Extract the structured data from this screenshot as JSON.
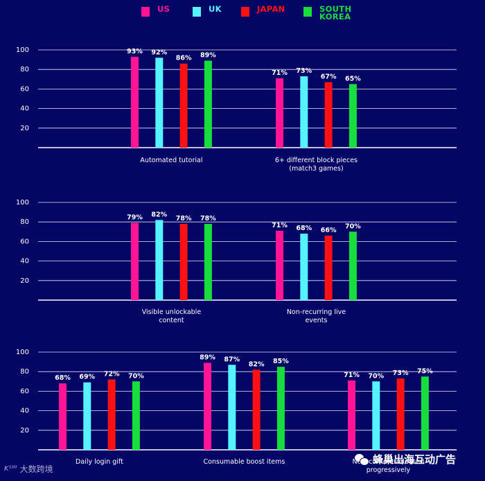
{
  "legend": [
    {
      "label": "US",
      "color": "#ff1493"
    },
    {
      "label": "UK",
      "color": "#55f2ff"
    },
    {
      "label": "JAPAN",
      "color": "#ff1111"
    },
    {
      "label": "SOUTH\nKOREA",
      "color": "#18dd3a"
    }
  ],
  "chart_data": [
    {
      "type": "bar",
      "categories": [
        "Automated tutorial",
        "6+ different block pieces\n(match3 games)"
      ],
      "series": [
        {
          "name": "US",
          "values": [
            93,
            71
          ],
          "labels": [
            "93%",
            "71%"
          ]
        },
        {
          "name": "UK",
          "values": [
            92,
            73
          ],
          "labels": [
            "92%",
            "73%"
          ]
        },
        {
          "name": "JAPAN",
          "values": [
            86,
            67
          ],
          "labels": [
            "86%",
            "67%"
          ]
        },
        {
          "name": "SOUTH KOREA",
          "values": [
            89,
            65
          ],
          "labels": [
            "89%",
            "65%"
          ]
        }
      ],
      "yticks": [
        "20",
        "40",
        "60",
        "80",
        "100"
      ],
      "ylim": [
        0,
        100
      ]
    },
    {
      "type": "bar",
      "categories": [
        "Visible unlockable\ncontent",
        "Non-recurring live\nevents"
      ],
      "series": [
        {
          "name": "US",
          "values": [
            79,
            71
          ],
          "labels": [
            "79%",
            "71%"
          ]
        },
        {
          "name": "UK",
          "values": [
            82,
            68
          ],
          "labels": [
            "82%",
            "68%"
          ]
        },
        {
          "name": "JAPAN",
          "values": [
            78,
            66
          ],
          "labels": [
            "78%",
            "66%"
          ]
        },
        {
          "name": "SOUTH KOREA",
          "values": [
            78,
            70
          ],
          "labels": [
            "78%",
            "70%"
          ]
        }
      ],
      "yticks": [
        "20",
        "40",
        "60",
        "80",
        "100"
      ],
      "ylim": [
        0,
        100
      ]
    },
    {
      "type": "bar",
      "categories": [
        "Daily login gift",
        "Consumable boost items",
        "New content released\nprogressively"
      ],
      "series": [
        {
          "name": "US",
          "values": [
            68,
            89,
            71
          ],
          "labels": [
            "68%",
            "89%",
            "71%"
          ]
        },
        {
          "name": "UK",
          "values": [
            69,
            87,
            70
          ],
          "labels": [
            "69%",
            "87%",
            "70%"
          ]
        },
        {
          "name": "JAPAN",
          "values": [
            72,
            82,
            73
          ],
          "labels": [
            "72%",
            "82%",
            "73%"
          ]
        },
        {
          "name": "SOUTH KOREA",
          "values": [
            70,
            85,
            75
          ],
          "labels": [
            "70%",
            "85%",
            "75%"
          ]
        }
      ],
      "yticks": [
        "20",
        "40",
        "60",
        "80",
        "100"
      ],
      "ylim": [
        0,
        100
      ]
    }
  ],
  "watermarks": {
    "left": "大数跨境",
    "right": "蜂巢出海互动广告"
  }
}
